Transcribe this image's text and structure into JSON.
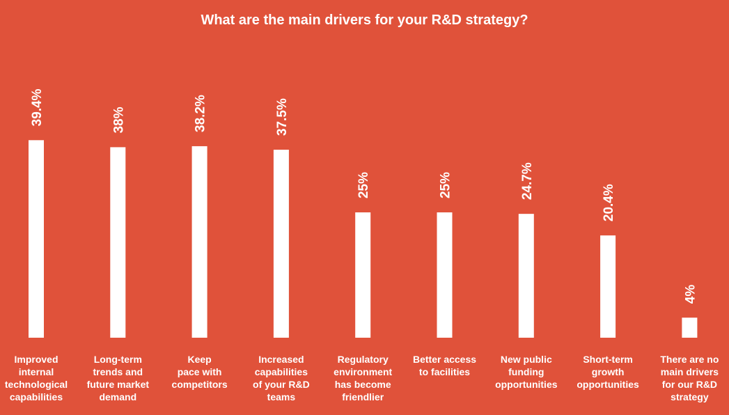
{
  "chart_data": {
    "type": "bar",
    "title": "What are the main drivers for your R&D strategy?",
    "categories": [
      "Improved\ninternal\ntechnological\ncapabilities",
      "Long-term\ntrends and\nfuture market\ndemand",
      "Keep\npace with\ncompetitors",
      "Increased\ncapabilities\nof your R&D\nteams",
      "Regulatory\nenvironment\nhas become\nfriendlier",
      "Better access\nto facilities",
      "New public\nfunding\nopportunities",
      "Short-term\ngrowth\nopportunities",
      "There are no\nmain drivers\nfor our R&D\nstrategy"
    ],
    "values": [
      39.4,
      38,
      38.2,
      37.5,
      25,
      25,
      24.7,
      20.4,
      4
    ],
    "value_labels": [
      "39.4%",
      "38%",
      "38.2%",
      "37.5%",
      "25%",
      "25%",
      "24.7%",
      "20.4%",
      "4%"
    ],
    "ylim": [
      0,
      40
    ],
    "grid": false,
    "legend": "none",
    "colors": {
      "background": "#E0523A",
      "bar": "#FFFFFF",
      "text": "#FFFFFF"
    }
  }
}
